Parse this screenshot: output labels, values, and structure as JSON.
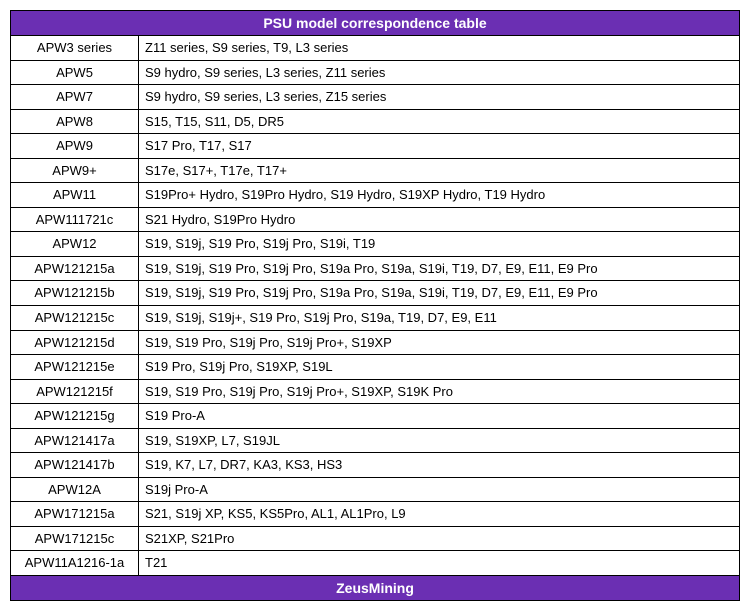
{
  "table": {
    "title": "PSU model correspondence table",
    "footer": "ZeusMining",
    "header_bg": "#6b2fb3",
    "header_color": "#ffffff",
    "border_color": "#000000",
    "rows": [
      {
        "model": "APW3 series",
        "compat": "Z11 series, S9 series, T9, L3 series"
      },
      {
        "model": "APW5",
        "compat": "S9 hydro, S9 series, L3 series, Z11 series"
      },
      {
        "model": "APW7",
        "compat": "S9 hydro, S9 series, L3 series, Z15 series"
      },
      {
        "model": "APW8",
        "compat": "S15, T15, S11, D5, DR5"
      },
      {
        "model": "APW9",
        "compat": "S17 Pro, T17, S17"
      },
      {
        "model": "APW9+",
        "compat": "S17e, S17+, T17e, T17+"
      },
      {
        "model": "APW11",
        "compat": "S19Pro+ Hydro, S19Pro Hydro, S19 Hydro, S19XP Hydro, T19 Hydro"
      },
      {
        "model": "APW111721c",
        "compat": "S21 Hydro,  S19Pro Hydro"
      },
      {
        "model": "APW12",
        "compat": "S19, S19j, S19 Pro, S19j Pro, S19i, T19"
      },
      {
        "model": "APW121215a",
        "compat": "S19, S19j, S19 Pro, S19j Pro, S19a Pro, S19a, S19i, T19, D7, E9, E11, E9 Pro"
      },
      {
        "model": "APW121215b",
        "compat": "S19, S19j, S19 Pro, S19j Pro, S19a Pro, S19a, S19i, T19, D7, E9, E11, E9 Pro"
      },
      {
        "model": "APW121215c",
        "compat": "S19, S19j, S19j+, S19 Pro, S19j Pro, S19a, T19, D7, E9, E11"
      },
      {
        "model": "APW121215d",
        "compat": "S19, S19 Pro, S19j Pro, S19j Pro+, S19XP"
      },
      {
        "model": "APW121215e",
        "compat": "S19 Pro, S19j Pro, S19XP, S19L"
      },
      {
        "model": "APW121215f",
        "compat": "S19, S19 Pro, S19j Pro, S19j Pro+, S19XP, S19K Pro"
      },
      {
        "model": "APW121215g",
        "compat": "S19 Pro-A"
      },
      {
        "model": "APW121417a",
        "compat": "S19, S19XP, L7, S19JL"
      },
      {
        "model": "APW121417b",
        "compat": "S19, K7, L7, DR7, KA3, KS3, HS3"
      },
      {
        "model": "APW12A",
        "compat": "S19j Pro-A"
      },
      {
        "model": "APW171215a",
        "compat": "S21, S19j XP, KS5, KS5Pro, AL1, AL1Pro, L9"
      },
      {
        "model": "APW171215c",
        "compat": "S21XP, S21Pro"
      },
      {
        "model": "APW11A1216-1a",
        "compat": "T21"
      }
    ]
  }
}
